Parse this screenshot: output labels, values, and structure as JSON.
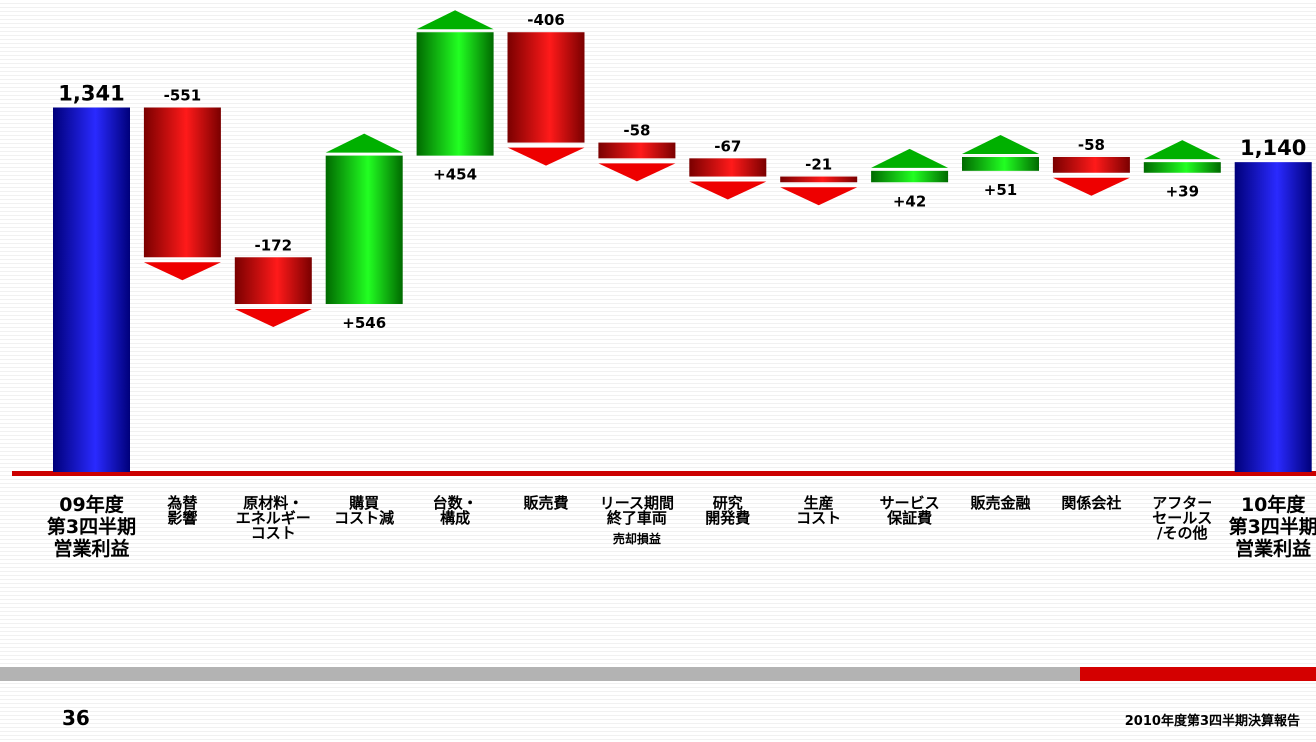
{
  "chart_data": {
    "type": "waterfall",
    "title": "",
    "categories": [
      {
        "label": "09年度\n第3四半期\n営業利益",
        "sub": ""
      },
      {
        "label": "為替\n影響",
        "sub": ""
      },
      {
        "label": "原材料・\nエネルギー\nコスト",
        "sub": ""
      },
      {
        "label": "購買\nコスト減",
        "sub": ""
      },
      {
        "label": "台数・\n構成",
        "sub": ""
      },
      {
        "label": "販売費",
        "sub": ""
      },
      {
        "label": "リース期間\n終了車両",
        "sub": "売却損益"
      },
      {
        "label": "研究\n開発費",
        "sub": ""
      },
      {
        "label": "生産\nコスト",
        "sub": ""
      },
      {
        "label": "サービス\n保証費",
        "sub": ""
      },
      {
        "label": "販売金融",
        "sub": ""
      },
      {
        "label": "関係会社",
        "sub": ""
      },
      {
        "label": "アフター\nセールス\n/その他",
        "sub": ""
      },
      {
        "label": "10年度\n第3四半期\n営業利益",
        "sub": ""
      }
    ],
    "values": [
      1341,
      -551,
      -172,
      546,
      454,
      -406,
      -58,
      -67,
      -21,
      42,
      51,
      -58,
      39,
      1140
    ],
    "value_labels": [
      "1,341",
      "-551",
      "-172",
      "+546",
      "+454",
      "-406",
      "-58",
      "-67",
      "-21",
      "+42",
      "+51",
      "-58",
      "+39",
      "1,140"
    ],
    "totals": [
      0,
      13
    ],
    "colors": {
      "total": "#1a1acc",
      "increase": "#11bb11",
      "decrease": "#dd0000",
      "baseline": "#cc0000"
    }
  },
  "footer": {
    "page_number": "36",
    "title": "2010年度第3四半期決算報告"
  }
}
